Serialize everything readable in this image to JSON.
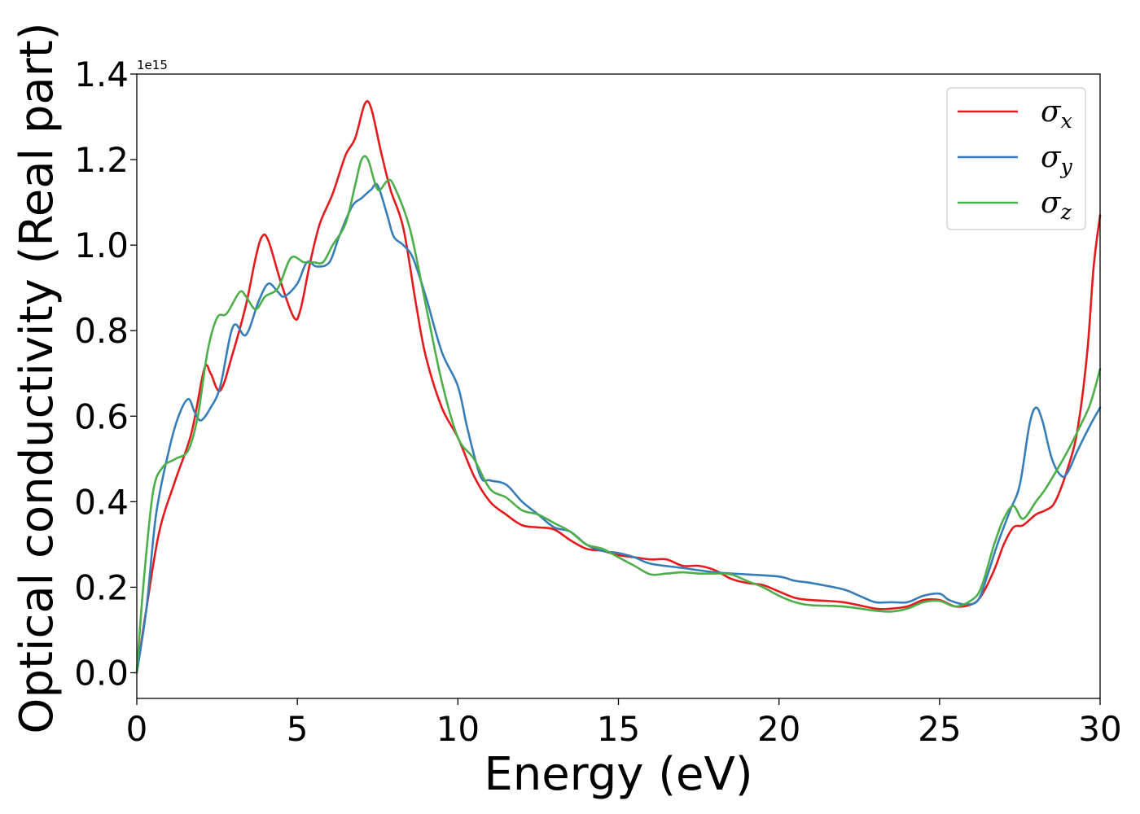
{
  "chart_data": {
    "type": "line",
    "xlabel": "Energy (eV)",
    "ylabel": "Optical conductivity (Real part)",
    "y_offset_label": "1e15",
    "xlim": [
      0,
      30
    ],
    "ylim": [
      -0.06,
      1.4
    ],
    "x_ticks": [
      0,
      5,
      10,
      15,
      20,
      25,
      30
    ],
    "x_tick_labels": [
      "0",
      "5",
      "10",
      "15",
      "20",
      "25",
      "30"
    ],
    "y_ticks": [
      0.0,
      0.2,
      0.4,
      0.6,
      0.8,
      1.0,
      1.2,
      1.4
    ],
    "y_tick_labels": [
      "0.0",
      "0.2",
      "0.4",
      "0.6",
      "0.8",
      "1.0",
      "1.2",
      "1.4"
    ],
    "grid": false,
    "legend_position": "top-right",
    "series": [
      {
        "name": "σx",
        "legend_base": "σ",
        "legend_sub": "x",
        "color": "#e41a1c",
        "points": [
          [
            0,
            0
          ],
          [
            0.3,
            0.15
          ],
          [
            0.7,
            0.33
          ],
          [
            1.2,
            0.45
          ],
          [
            1.7,
            0.56
          ],
          [
            2.1,
            0.71
          ],
          [
            2.3,
            0.7
          ],
          [
            2.6,
            0.66
          ],
          [
            3.0,
            0.75
          ],
          [
            3.4,
            0.86
          ],
          [
            3.7,
            0.97
          ],
          [
            3.9,
            1.02
          ],
          [
            4.1,
            1.01
          ],
          [
            4.5,
            0.91
          ],
          [
            4.9,
            0.83
          ],
          [
            5.1,
            0.85
          ],
          [
            5.4,
            0.96
          ],
          [
            5.7,
            1.05
          ],
          [
            6.1,
            1.12
          ],
          [
            6.5,
            1.21
          ],
          [
            6.8,
            1.25
          ],
          [
            7.1,
            1.33
          ],
          [
            7.3,
            1.32
          ],
          [
            7.6,
            1.22
          ],
          [
            7.9,
            1.13
          ],
          [
            8.3,
            1.04
          ],
          [
            8.7,
            0.86
          ],
          [
            9.0,
            0.74
          ],
          [
            9.5,
            0.62
          ],
          [
            10.0,
            0.55
          ],
          [
            10.5,
            0.46
          ],
          [
            11.0,
            0.4
          ],
          [
            11.5,
            0.37
          ],
          [
            12.0,
            0.345
          ],
          [
            12.5,
            0.34
          ],
          [
            13.0,
            0.335
          ],
          [
            13.5,
            0.31
          ],
          [
            14.0,
            0.29
          ],
          [
            14.5,
            0.285
          ],
          [
            15.0,
            0.275
          ],
          [
            15.5,
            0.27
          ],
          [
            16.0,
            0.265
          ],
          [
            16.5,
            0.265
          ],
          [
            17.0,
            0.25
          ],
          [
            17.5,
            0.25
          ],
          [
            18.0,
            0.24
          ],
          [
            18.5,
            0.22
          ],
          [
            19.0,
            0.21
          ],
          [
            19.5,
            0.205
          ],
          [
            20.0,
            0.19
          ],
          [
            20.5,
            0.175
          ],
          [
            21.0,
            0.17
          ],
          [
            22.0,
            0.165
          ],
          [
            23.0,
            0.15
          ],
          [
            23.5,
            0.15
          ],
          [
            24.0,
            0.155
          ],
          [
            24.5,
            0.17
          ],
          [
            25.0,
            0.17
          ],
          [
            25.5,
            0.155
          ],
          [
            26.0,
            0.16
          ],
          [
            26.3,
            0.18
          ],
          [
            26.7,
            0.24
          ],
          [
            27.0,
            0.3
          ],
          [
            27.3,
            0.34
          ],
          [
            27.6,
            0.345
          ],
          [
            28.0,
            0.37
          ],
          [
            28.3,
            0.38
          ],
          [
            28.6,
            0.4
          ],
          [
            29.0,
            0.48
          ],
          [
            29.3,
            0.57
          ],
          [
            29.6,
            0.75
          ],
          [
            29.8,
            0.95
          ],
          [
            30.0,
            1.07
          ]
        ]
      },
      {
        "name": "σy",
        "legend_base": "σ",
        "legend_sub": "y",
        "color": "#377eb8",
        "points": [
          [
            0,
            0
          ],
          [
            0.3,
            0.15
          ],
          [
            0.6,
            0.37
          ],
          [
            1.0,
            0.52
          ],
          [
            1.3,
            0.6
          ],
          [
            1.6,
            0.64
          ],
          [
            1.8,
            0.61
          ],
          [
            2.0,
            0.59
          ],
          [
            2.3,
            0.62
          ],
          [
            2.6,
            0.67
          ],
          [
            3.0,
            0.81
          ],
          [
            3.4,
            0.79
          ],
          [
            3.8,
            0.87
          ],
          [
            4.1,
            0.91
          ],
          [
            4.4,
            0.89
          ],
          [
            4.6,
            0.88
          ],
          [
            5.0,
            0.91
          ],
          [
            5.3,
            0.96
          ],
          [
            5.6,
            0.95
          ],
          [
            6.0,
            0.96
          ],
          [
            6.3,
            1.02
          ],
          [
            6.7,
            1.09
          ],
          [
            7.0,
            1.11
          ],
          [
            7.3,
            1.13
          ],
          [
            7.5,
            1.14
          ],
          [
            7.8,
            1.07
          ],
          [
            8.0,
            1.02
          ],
          [
            8.3,
            1.0
          ],
          [
            8.6,
            0.97
          ],
          [
            9.0,
            0.88
          ],
          [
            9.5,
            0.75
          ],
          [
            10.0,
            0.67
          ],
          [
            10.3,
            0.57
          ],
          [
            10.7,
            0.46
          ],
          [
            11.0,
            0.45
          ],
          [
            11.5,
            0.44
          ],
          [
            12.0,
            0.4
          ],
          [
            12.5,
            0.37
          ],
          [
            13.0,
            0.34
          ],
          [
            13.5,
            0.33
          ],
          [
            14.0,
            0.3
          ],
          [
            14.5,
            0.285
          ],
          [
            15.0,
            0.28
          ],
          [
            15.5,
            0.27
          ],
          [
            16.0,
            0.255
          ],
          [
            17.0,
            0.245
          ],
          [
            18.0,
            0.235
          ],
          [
            19.0,
            0.23
          ],
          [
            20.0,
            0.225
          ],
          [
            20.5,
            0.215
          ],
          [
            21.0,
            0.21
          ],
          [
            22.0,
            0.195
          ],
          [
            22.5,
            0.18
          ],
          [
            23.0,
            0.165
          ],
          [
            23.5,
            0.165
          ],
          [
            24.0,
            0.165
          ],
          [
            24.5,
            0.18
          ],
          [
            25.0,
            0.185
          ],
          [
            25.3,
            0.17
          ],
          [
            25.8,
            0.16
          ],
          [
            26.2,
            0.17
          ],
          [
            26.5,
            0.23
          ],
          [
            26.8,
            0.3
          ],
          [
            27.2,
            0.38
          ],
          [
            27.5,
            0.44
          ],
          [
            27.8,
            0.58
          ],
          [
            28.0,
            0.62
          ],
          [
            28.2,
            0.59
          ],
          [
            28.5,
            0.5
          ],
          [
            28.8,
            0.46
          ],
          [
            29.0,
            0.47
          ],
          [
            29.3,
            0.52
          ],
          [
            29.7,
            0.58
          ],
          [
            30.0,
            0.62
          ]
        ]
      },
      {
        "name": "σz",
        "legend_base": "σ",
        "legend_sub": "z",
        "color": "#4daf4a",
        "points": [
          [
            0,
            0
          ],
          [
            0.2,
            0.2
          ],
          [
            0.5,
            0.42
          ],
          [
            0.8,
            0.48
          ],
          [
            1.2,
            0.5
          ],
          [
            1.6,
            0.52
          ],
          [
            1.9,
            0.6
          ],
          [
            2.2,
            0.75
          ],
          [
            2.5,
            0.83
          ],
          [
            2.8,
            0.84
          ],
          [
            3.2,
            0.89
          ],
          [
            3.4,
            0.88
          ],
          [
            3.7,
            0.85
          ],
          [
            4.0,
            0.88
          ],
          [
            4.4,
            0.9
          ],
          [
            4.8,
            0.97
          ],
          [
            5.2,
            0.96
          ],
          [
            5.5,
            0.96
          ],
          [
            5.8,
            0.96
          ],
          [
            6.1,
            1.0
          ],
          [
            6.5,
            1.05
          ],
          [
            6.8,
            1.14
          ],
          [
            7.0,
            1.2
          ],
          [
            7.2,
            1.2
          ],
          [
            7.5,
            1.13
          ],
          [
            7.8,
            1.15
          ],
          [
            8.0,
            1.14
          ],
          [
            8.5,
            1.04
          ],
          [
            9.0,
            0.86
          ],
          [
            9.5,
            0.68
          ],
          [
            10.0,
            0.55
          ],
          [
            10.5,
            0.5
          ],
          [
            11.0,
            0.43
          ],
          [
            11.5,
            0.41
          ],
          [
            12.0,
            0.38
          ],
          [
            12.5,
            0.37
          ],
          [
            13.0,
            0.35
          ],
          [
            13.5,
            0.33
          ],
          [
            14.0,
            0.3
          ],
          [
            14.5,
            0.29
          ],
          [
            15.0,
            0.27
          ],
          [
            15.5,
            0.25
          ],
          [
            16.0,
            0.23
          ],
          [
            16.5,
            0.232
          ],
          [
            17.0,
            0.235
          ],
          [
            17.5,
            0.232
          ],
          [
            18.0,
            0.232
          ],
          [
            18.5,
            0.23
          ],
          [
            19.0,
            0.215
          ],
          [
            19.5,
            0.2
          ],
          [
            20.0,
            0.18
          ],
          [
            20.5,
            0.165
          ],
          [
            21.0,
            0.158
          ],
          [
            22.0,
            0.155
          ],
          [
            23.0,
            0.145
          ],
          [
            23.5,
            0.143
          ],
          [
            24.0,
            0.15
          ],
          [
            24.5,
            0.165
          ],
          [
            25.0,
            0.168
          ],
          [
            25.5,
            0.155
          ],
          [
            26.0,
            0.17
          ],
          [
            26.3,
            0.2
          ],
          [
            26.7,
            0.3
          ],
          [
            27.0,
            0.36
          ],
          [
            27.3,
            0.39
          ],
          [
            27.6,
            0.36
          ],
          [
            28.0,
            0.4
          ],
          [
            28.3,
            0.43
          ],
          [
            28.7,
            0.48
          ],
          [
            29.0,
            0.52
          ],
          [
            29.4,
            0.58
          ],
          [
            29.7,
            0.63
          ],
          [
            30.0,
            0.71
          ]
        ]
      }
    ]
  }
}
